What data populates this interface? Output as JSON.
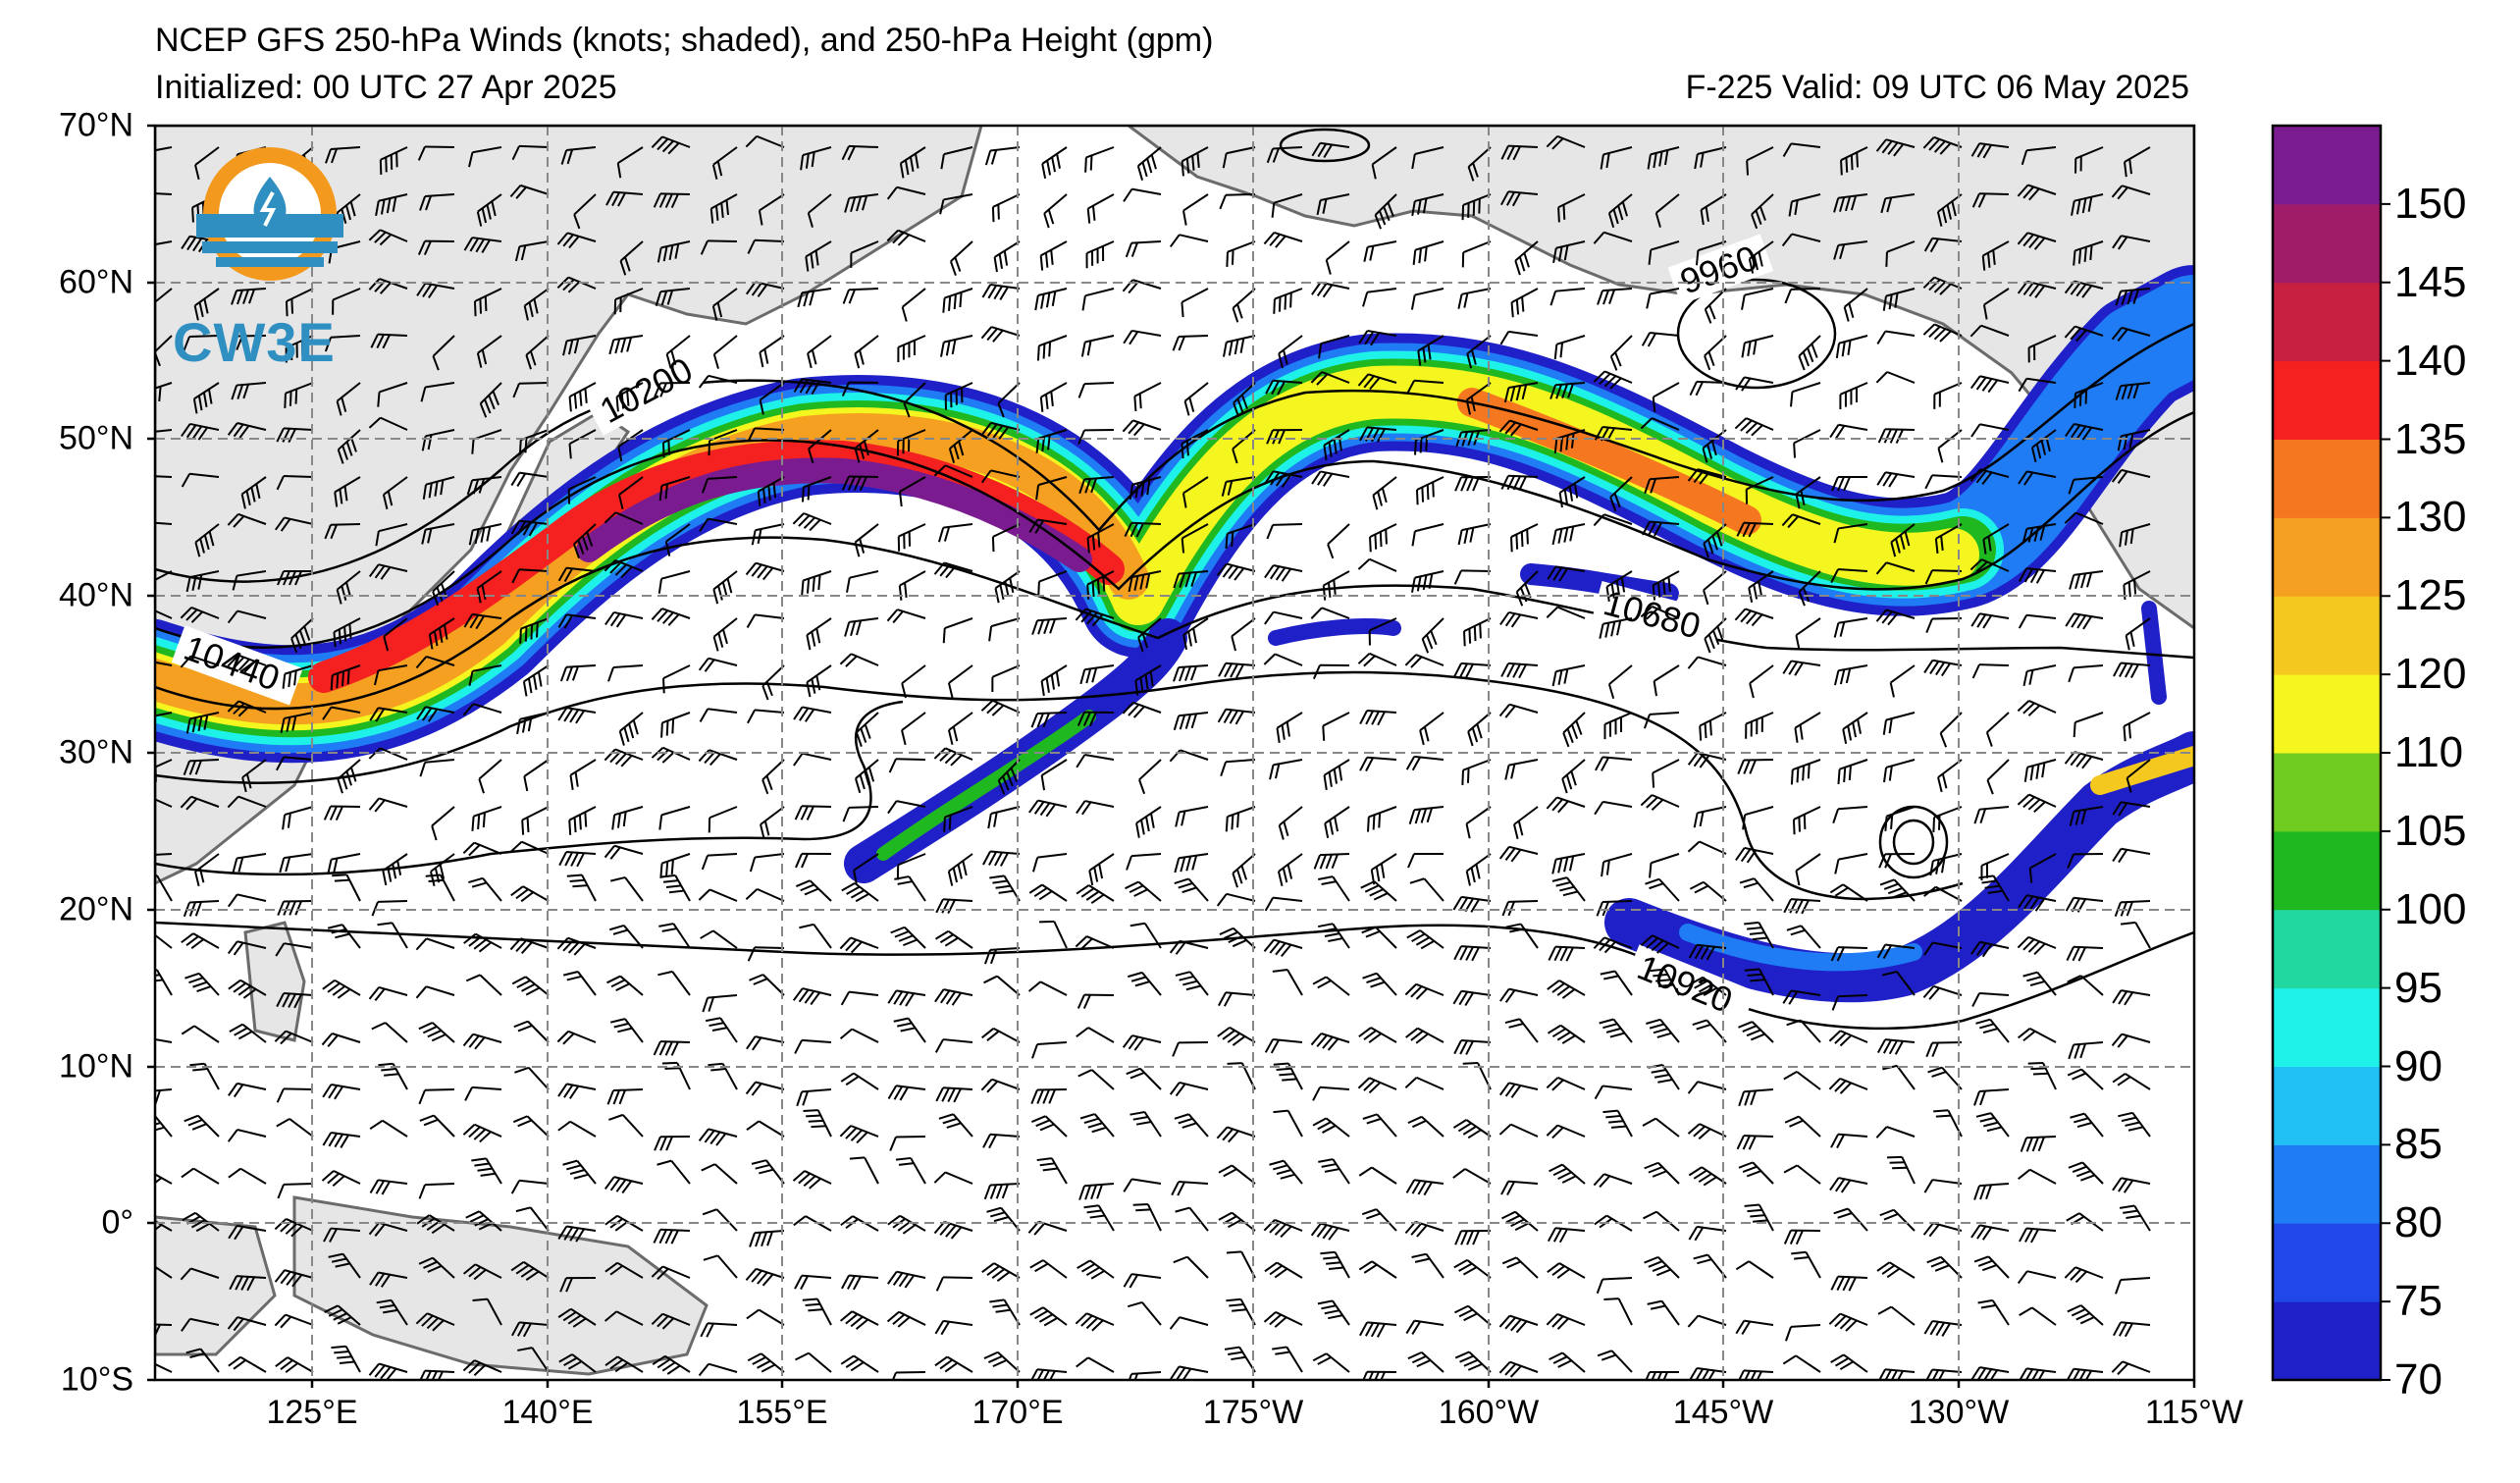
{
  "title": {
    "line1": "NCEP GFS 250-hPa Winds (knots; shaded), and 250-hPa Height (gpm)",
    "initialized": "Initialized: 00 UTC 27 Apr 2025",
    "valid": "F-225  Valid: 09 UTC 06 May 2025"
  },
  "logo": {
    "text": "CW3E",
    "color": "#2e8fc0",
    "ring_color": "#f39a1e"
  },
  "axes": {
    "lat_labels": [
      "70°N",
      "60°N",
      "50°N",
      "40°N",
      "30°N",
      "20°N",
      "10°N",
      "0°",
      "10°S"
    ],
    "lon_labels": [
      "125°E",
      "140°E",
      "155°E",
      "170°E",
      "175°W",
      "160°W",
      "145°W",
      "130°W",
      "115°W"
    ]
  },
  "contour_labels": [
    "10200",
    "9960",
    "10440",
    "10680",
    "10920"
  ],
  "colorbar": {
    "labels": [
      "70",
      "75",
      "80",
      "85",
      "90",
      "95",
      "100",
      "105",
      "110",
      "120",
      "125",
      "130",
      "135",
      "140",
      "145",
      "150"
    ],
    "colors": [
      "#1f20c8",
      "#2048e8",
      "#1f7cf5",
      "#20c0f5",
      "#1ef2e8",
      "#20d8a0",
      "#20b820",
      "#70cc20",
      "#f5f520",
      "#f5c820",
      "#f5a020",
      "#f57820",
      "#f52020",
      "#c82040",
      "#a01c68",
      "#7a1c90"
    ]
  }
}
